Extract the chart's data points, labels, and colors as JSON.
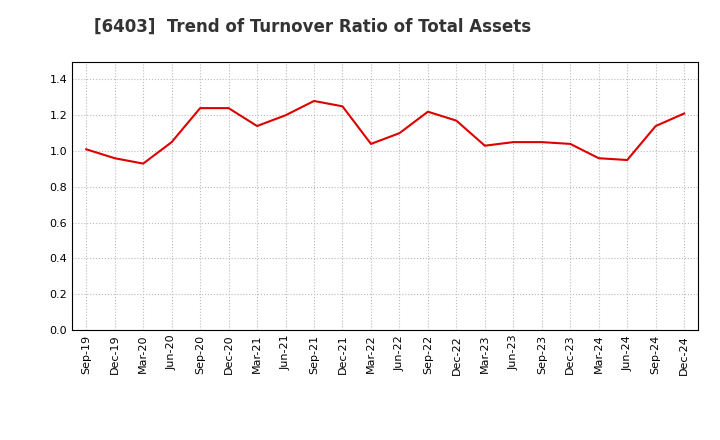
{
  "title": "[6403]  Trend of Turnover Ratio of Total Assets",
  "x_labels": [
    "Sep-19",
    "Dec-19",
    "Mar-20",
    "Jun-20",
    "Sep-20",
    "Dec-20",
    "Mar-21",
    "Jun-21",
    "Sep-21",
    "Dec-21",
    "Mar-22",
    "Jun-22",
    "Sep-22",
    "Dec-22",
    "Mar-23",
    "Jun-23",
    "Sep-23",
    "Dec-23",
    "Mar-24",
    "Jun-24",
    "Sep-24",
    "Dec-24"
  ],
  "y_values": [
    1.01,
    0.96,
    0.93,
    1.05,
    1.24,
    1.24,
    1.14,
    1.2,
    1.28,
    1.25,
    1.04,
    1.1,
    1.22,
    1.17,
    1.03,
    1.05,
    1.05,
    1.04,
    0.96,
    0.95,
    1.14,
    1.21
  ],
  "ylim": [
    0.0,
    1.5
  ],
  "yticks": [
    0.0,
    0.2,
    0.4,
    0.6,
    0.8,
    1.0,
    1.2,
    1.4
  ],
  "line_color": "#dd0000",
  "line_width": 1.5,
  "background_color": "#ffffff",
  "plot_bg_color": "#ffffff",
  "grid_color": "#bbbbbb",
  "title_fontsize": 12,
  "tick_fontsize": 8,
  "title_color": "#333333"
}
